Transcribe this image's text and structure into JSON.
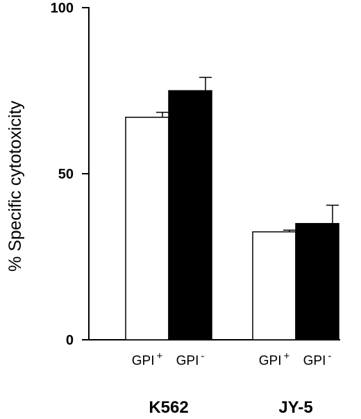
{
  "chart_data": {
    "type": "bar",
    "ylabel": "% Specific cytotoxicity",
    "ylim": [
      0,
      100
    ],
    "yticks": [
      "0",
      "50",
      "100"
    ],
    "groups": [
      {
        "name": "K562",
        "bars": [
          {
            "label": "GPI",
            "sup": "+",
            "value": 67,
            "error": 1.5,
            "fill": "white"
          },
          {
            "label": "GPI",
            "sup": "-",
            "value": 75,
            "error": 4,
            "fill": "black"
          }
        ]
      },
      {
        "name": "JY-5",
        "bars": [
          {
            "label": "GPI",
            "sup": "+",
            "value": 32.5,
            "error": 0.5,
            "fill": "white"
          },
          {
            "label": "GPI",
            "sup": "-",
            "value": 35,
            "error": 5.5,
            "fill": "black"
          }
        ]
      }
    ]
  }
}
